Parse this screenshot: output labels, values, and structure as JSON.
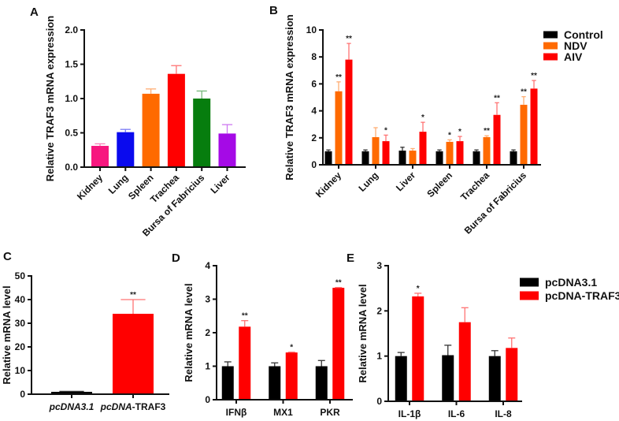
{
  "chart_data": [
    {
      "id": "A",
      "panel_label": "A",
      "type": "bar",
      "ylabel": "Relative TRAF3 mRNA expression",
      "ylim": [
        0,
        2.0
      ],
      "yticks": [
        0.0,
        0.5,
        1.0,
        1.5,
        2.0
      ],
      "tick_decimals": 1,
      "categories": [
        "Kidney",
        "Lung",
        "Spleen",
        "Trachea",
        "Bursa of Fabricius",
        "Liver"
      ],
      "series": [
        {
          "name": "",
          "colors": [
            "#f7177f",
            "#0a0aee",
            "#ff6a00",
            "#ff0000",
            "#067d0e",
            "#a50ae6"
          ],
          "values": [
            0.31,
            0.51,
            1.07,
            1.36,
            1.0,
            0.49
          ],
          "errors": [
            0.03,
            0.04,
            0.07,
            0.12,
            0.11,
            0.13
          ],
          "sig": [
            "",
            "",
            "",
            "",
            "",
            ""
          ]
        }
      ]
    },
    {
      "id": "B",
      "panel_label": "B",
      "type": "bar",
      "ylabel": "Relative TRAF3 mRNA expression",
      "ylim": [
        0,
        10
      ],
      "yticks": [
        0,
        2,
        4,
        6,
        8,
        10
      ],
      "tick_decimals": 0,
      "categories": [
        "Kidney",
        "Lung",
        "Liver",
        "Spleen",
        "Trachea",
        "Bursa of Fabricius"
      ],
      "legend": "top-right",
      "series": [
        {
          "name": "Control",
          "color": "#000000",
          "values": [
            1.0,
            1.0,
            1.05,
            1.0,
            1.0,
            1.0
          ],
          "errors": [
            0.1,
            0.1,
            0.25,
            0.1,
            0.1,
            0.1
          ],
          "sig": [
            "",
            "",
            "",
            "",
            "",
            ""
          ]
        },
        {
          "name": "NDV",
          "color": "#ff6a00",
          "values": [
            5.45,
            2.05,
            1.05,
            1.7,
            2.05,
            4.45
          ],
          "errors": [
            0.7,
            0.7,
            0.15,
            0.15,
            0.1,
            0.6
          ],
          "sig": [
            "**",
            "",
            "",
            "*",
            "**",
            "**"
          ]
        },
        {
          "name": "AIV",
          "color": "#ff0000",
          "values": [
            7.8,
            1.75,
            2.45,
            1.75,
            3.7,
            5.65
          ],
          "errors": [
            1.2,
            0.45,
            0.7,
            0.35,
            0.9,
            0.6
          ],
          "sig": [
            "**",
            "*",
            "*",
            "*",
            "**",
            "**"
          ]
        }
      ]
    },
    {
      "id": "C",
      "panel_label": "C",
      "type": "bar",
      "ylabel": "Relative mRNA level",
      "ylim": [
        0,
        50
      ],
      "yticks": [
        0,
        10,
        20,
        30,
        40,
        50
      ],
      "tick_decimals": 0,
      "categories": [
        "pcDNA3.1",
        "pcDNA-TRAF3"
      ],
      "series": [
        {
          "name": "",
          "colors": [
            "#000000",
            "#ff0000"
          ],
          "values": [
            1.0,
            34.0
          ],
          "errors": [
            0.2,
            6.0
          ],
          "sig": [
            "",
            "**"
          ]
        }
      ]
    },
    {
      "id": "D",
      "panel_label": "D",
      "type": "bar",
      "ylabel": "Relative mRNA level",
      "ylim": [
        0,
        4
      ],
      "yticks": [
        0,
        1,
        2,
        3,
        4
      ],
      "tick_decimals": 0,
      "categories": [
        "IFNβ",
        "MX1",
        "PKR"
      ],
      "series": [
        {
          "name": "pcDNA3.1",
          "color": "#000000",
          "values": [
            1.0,
            1.0,
            1.0
          ],
          "errors": [
            0.13,
            0.1,
            0.17
          ],
          "sig": [
            "",
            "",
            ""
          ]
        },
        {
          "name": "pcDNA-TRAF3",
          "color": "#ff0000",
          "values": [
            2.18,
            1.41,
            3.34
          ],
          "errors": [
            0.18,
            0.01,
            0.01
          ],
          "sig": [
            "**",
            "*",
            "**"
          ]
        }
      ]
    },
    {
      "id": "E",
      "panel_label": "E",
      "type": "bar",
      "ylabel": "Relative mRNA level",
      "ylim": [
        0,
        3
      ],
      "yticks": [
        0,
        1,
        2,
        3
      ],
      "tick_decimals": 0,
      "categories": [
        "IL-1β",
        "IL-6",
        "IL-8"
      ],
      "legend": "right",
      "series": [
        {
          "name": "pcDNA3.1",
          "color": "#000000",
          "values": [
            1.0,
            1.02,
            1.0
          ],
          "errors": [
            0.08,
            0.22,
            0.12
          ],
          "sig": [
            "",
            "",
            ""
          ]
        },
        {
          "name": "pcDNA-TRAF3",
          "color": "#ff0000",
          "values": [
            2.32,
            1.75,
            1.18
          ],
          "errors": [
            0.07,
            0.32,
            0.22
          ],
          "sig": [
            "*",
            "",
            ""
          ]
        }
      ]
    }
  ]
}
